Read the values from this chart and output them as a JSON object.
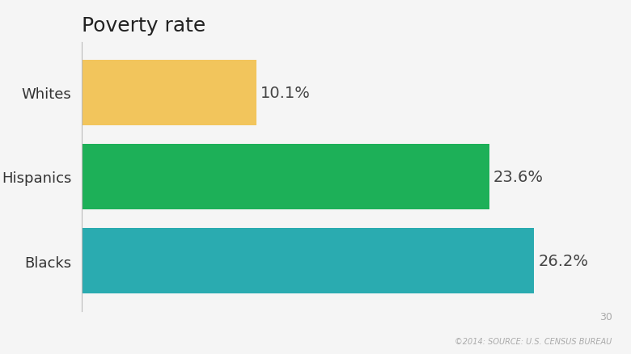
{
  "title": "Poverty rate",
  "categories": [
    "Whites",
    "Hispanics",
    "Blacks"
  ],
  "values": [
    10.1,
    23.6,
    26.2
  ],
  "labels": [
    "10.1%",
    "23.6%",
    "26.2%"
  ],
  "bar_colors": [
    "#f2c55c",
    "#1db058",
    "#2aabb0"
  ],
  "background_color": "#f5f5f5",
  "xlim": [
    0,
    30
  ],
  "title_fontsize": 18,
  "label_fontsize": 14,
  "tick_fontsize": 13,
  "source_text": "©2014: SOURCE: U.S. CENSUS BUREAU",
  "page_number": "30",
  "source_fontsize": 7,
  "page_fontsize": 9,
  "bar_height": 0.78,
  "bar_spacing": 0.88
}
